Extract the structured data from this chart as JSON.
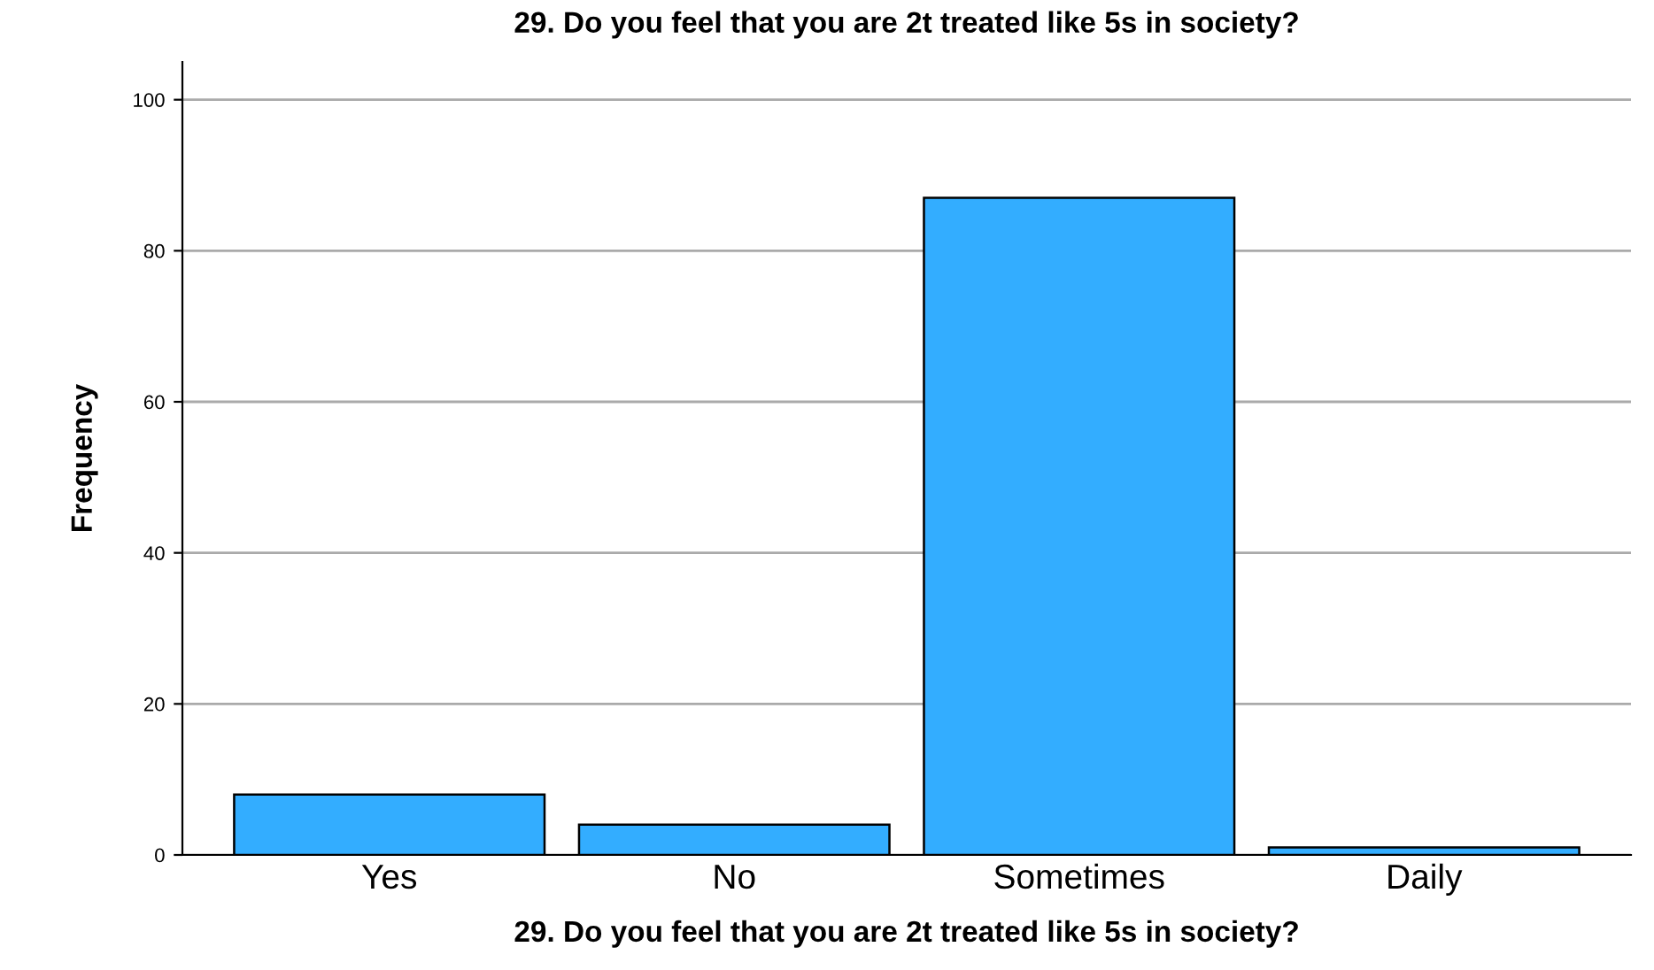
{
  "chart_data": {
    "type": "bar",
    "title": "29. Do you feel that you are 2t treated like 5s in society?",
    "xlabel": "29. Do you feel that you are 2t treated like 5s in society?",
    "ylabel": "Frequency",
    "categories": [
      "Yes",
      "No",
      "Sometimes",
      "Daily"
    ],
    "values": [
      8,
      4,
      87,
      1
    ],
    "color": "#33adff",
    "ylim": [
      0,
      105
    ],
    "yticks": [
      0,
      20,
      40,
      60,
      80,
      100
    ],
    "grid": "y"
  }
}
